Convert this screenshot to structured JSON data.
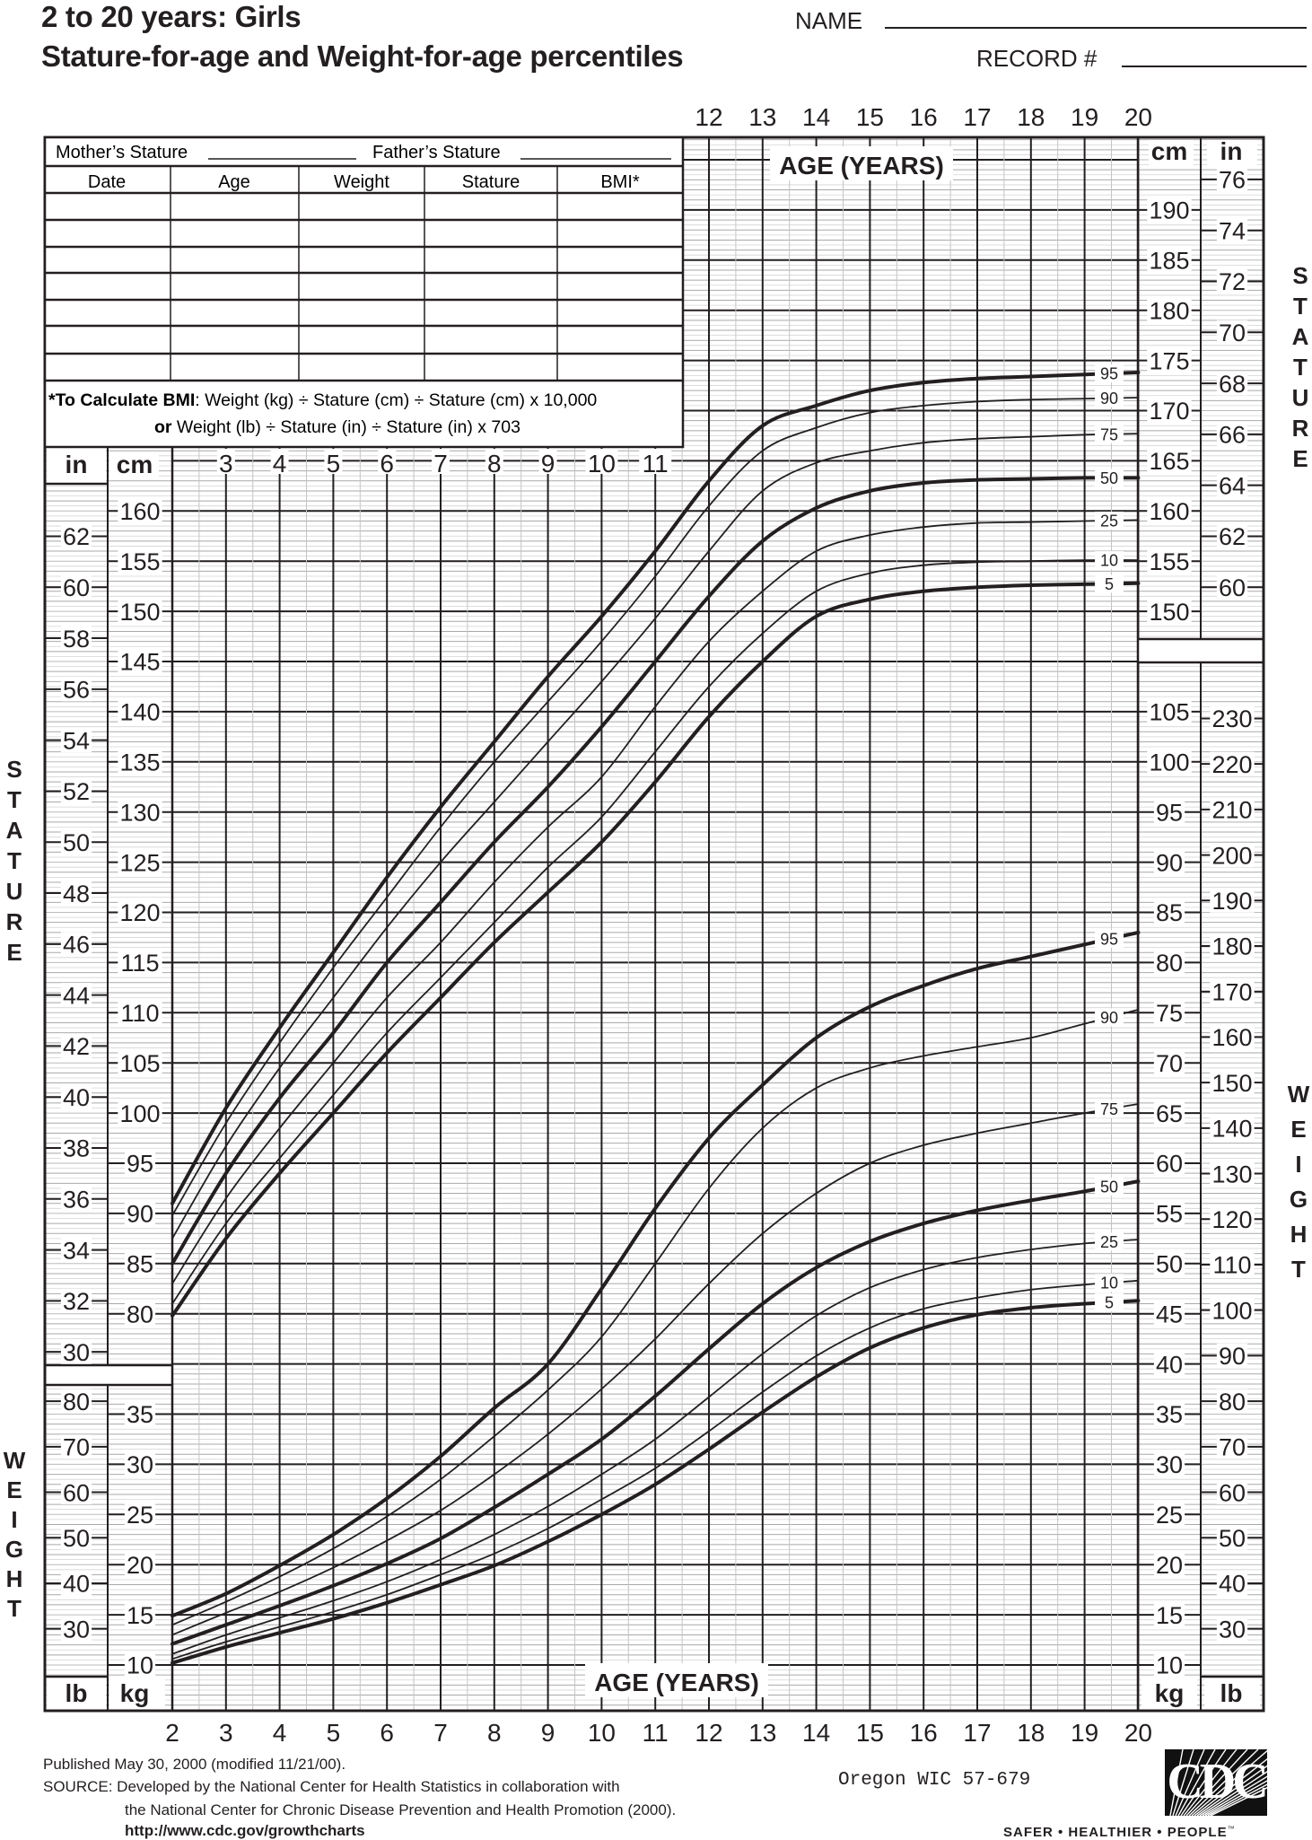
{
  "header": {
    "title": "2 to 20 years: Girls",
    "subtitle": "Stature-for-age and Weight-for-age percentiles",
    "name_label": "NAME",
    "record_label": "RECORD #"
  },
  "record_table": {
    "mothers_stature": "Mother’s Stature",
    "fathers_stature": "Father’s Stature",
    "columns": [
      "Date",
      "Age",
      "Weight",
      "Stature",
      "BMI*"
    ],
    "bmi_note_bold": "*To Calculate BMI",
    "bmi_note_1": ": Weight (kg) ÷ Stature (cm) ÷ Stature (cm) x 10,000",
    "bmi_note_or": "or",
    "bmi_note_2": " Weight (lb) ÷ Stature (in) ÷ Stature (in) x 703"
  },
  "units": {
    "in": "in",
    "cm": "cm",
    "lb": "lb",
    "kg": "kg"
  },
  "footer": {
    "published": "Published May 30, 2000 (modified 11/21/00).",
    "source_1": "SOURCE: Developed by the National Center for Health Statistics in collaboration with",
    "source_2": "the National Center for Chronic Disease Prevention and Health Promotion (2000).",
    "url": "http://www.cdc.gov/growthcharts",
    "form_id": "Oregon WIC 57-679"
  },
  "logo": {
    "text": "CDC",
    "tagline": "SAFER • HEALTHIER • PEOPLE",
    "tm": "™"
  },
  "chart_data": [
    {
      "type": "line",
      "xlabel": "AGE (YEARS)",
      "ylabel": "STATURE",
      "x_units": "years",
      "y_units": [
        "cm",
        "in"
      ],
      "xlim": [
        2,
        20
      ],
      "x_ticks": [
        2,
        3,
        4,
        5,
        6,
        7,
        8,
        9,
        10,
        11,
        12,
        13,
        14,
        15,
        16,
        17,
        18,
        19,
        20
      ],
      "y_ticks_cm": [
        80,
        85,
        90,
        95,
        100,
        105,
        110,
        115,
        120,
        125,
        130,
        135,
        140,
        145,
        150,
        155,
        160,
        165,
        170,
        175,
        180,
        185,
        190
      ],
      "y_ticks_in": [
        30,
        32,
        34,
        36,
        38,
        40,
        42,
        44,
        46,
        48,
        50,
        52,
        54,
        56,
        58,
        60,
        62,
        64,
        66,
        68,
        70,
        72,
        74,
        76
      ],
      "grid": true,
      "x": [
        2,
        3,
        4,
        5,
        6,
        7,
        8,
        9,
        10,
        11,
        12,
        13,
        14,
        15,
        16,
        17,
        18,
        19,
        20
      ],
      "series": [
        {
          "name": "5",
          "values": [
            79.8,
            87.5,
            94,
            100,
            106,
            111.5,
            117,
            122,
            127,
            133,
            139.5,
            145,
            149.5,
            151.2,
            152,
            152.4,
            152.6,
            152.7,
            152.8
          ]
        },
        {
          "name": "10",
          "values": [
            81,
            89,
            95.5,
            101.8,
            108,
            113.5,
            119,
            124.5,
            129.5,
            136,
            142.5,
            147.8,
            152,
            153.8,
            154.6,
            154.9,
            155,
            155.1,
            155.1
          ]
        },
        {
          "name": "25",
          "values": [
            83,
            91.5,
            98.5,
            105,
            111.5,
            117,
            123,
            128.5,
            133.5,
            140.5,
            147,
            152,
            156,
            157.6,
            158.4,
            158.8,
            158.9,
            159,
            159.1
          ]
        },
        {
          "name": "50",
          "values": [
            85,
            94,
            101.5,
            108,
            115,
            121,
            127,
            132.5,
            138.5,
            145,
            151.5,
            157,
            160.3,
            162,
            162.8,
            163.1,
            163.2,
            163.3,
            163.3
          ]
        },
        {
          "name": "75",
          "values": [
            87.5,
            96.7,
            104.5,
            111.5,
            118.5,
            125,
            131,
            137,
            143,
            149.3,
            156,
            162,
            164.8,
            166,
            166.8,
            167.2,
            167.4,
            167.6,
            167.7
          ]
        },
        {
          "name": "90",
          "values": [
            89.8,
            99,
            107,
            114.5,
            121.5,
            128.5,
            135,
            141,
            147,
            153.5,
            160.5,
            166,
            168.3,
            169.8,
            170.5,
            170.9,
            171.1,
            171.2,
            171.3
          ]
        },
        {
          "name": "95",
          "values": [
            91,
            100.5,
            108.5,
            116,
            123.5,
            130.5,
            137,
            143.5,
            149.5,
            156,
            163,
            168.5,
            170.5,
            172,
            172.8,
            173.2,
            173.4,
            173.6,
            173.8
          ]
        }
      ]
    },
    {
      "type": "line",
      "xlabel": "AGE (YEARS)",
      "ylabel": "WEIGHT",
      "x_units": "years",
      "y_units": [
        "kg",
        "lb"
      ],
      "xlim": [
        2,
        20
      ],
      "y_ticks_kg": [
        10,
        15,
        20,
        25,
        30,
        35,
        40,
        45,
        50,
        55,
        60,
        65,
        70,
        75,
        80,
        85,
        90,
        95,
        100,
        105
      ],
      "y_ticks_lb": [
        30,
        40,
        50,
        60,
        70,
        80,
        90,
        100,
        110,
        120,
        130,
        140,
        150,
        160,
        170,
        180,
        190,
        200,
        210,
        220,
        230
      ],
      "grid": true,
      "x": [
        2,
        3,
        4,
        5,
        6,
        7,
        8,
        9,
        10,
        11,
        12,
        13,
        14,
        15,
        16,
        17,
        18,
        19,
        20
      ],
      "series": [
        {
          "name": "5",
          "values": [
            10.2,
            11.8,
            13.2,
            14.6,
            16.2,
            18,
            19.9,
            22.3,
            25,
            28,
            31.5,
            35.2,
            38.7,
            41.6,
            43.6,
            44.9,
            45.6,
            46,
            46.3
          ]
        },
        {
          "name": "10",
          "values": [
            10.6,
            12.3,
            13.8,
            15.3,
            17,
            19,
            21.1,
            23.6,
            26.5,
            29.6,
            33.3,
            37.2,
            40.8,
            43.6,
            45.5,
            46.6,
            47.4,
            47.9,
            48.3
          ]
        },
        {
          "name": "25",
          "values": [
            11.1,
            13,
            14.7,
            16.4,
            18.3,
            20.5,
            23,
            25.8,
            29,
            32.5,
            36.7,
            41,
            44.8,
            47.6,
            49.4,
            50.6,
            51.4,
            52,
            52.4
          ]
        },
        {
          "name": "50",
          "values": [
            12.1,
            14,
            15.9,
            17.9,
            20.1,
            22.6,
            25.7,
            29,
            32.5,
            36.8,
            41.5,
            46,
            49.6,
            52.2,
            54,
            55.3,
            56.3,
            57.2,
            58.2
          ]
        },
        {
          "name": "75",
          "values": [
            13,
            15.2,
            17.3,
            19.7,
            22.4,
            25.4,
            29,
            33,
            37.5,
            42.5,
            48,
            53,
            57,
            60,
            61.8,
            63,
            64,
            65,
            65.9
          ]
        },
        {
          "name": "90",
          "values": [
            14,
            16.3,
            18.8,
            21.6,
            24.8,
            28.5,
            32.8,
            37.4,
            42.7,
            50,
            57.5,
            63.5,
            67.5,
            69.5,
            70.7,
            71.6,
            72.5,
            73.9,
            75.3
          ]
        },
        {
          "name": "95",
          "values": [
            14.9,
            17.1,
            19.9,
            23,
            26.6,
            30.8,
            35.6,
            40,
            47.5,
            55.5,
            62.5,
            67.8,
            72.5,
            75.6,
            77.7,
            79.4,
            80.6,
            81.8,
            83
          ]
        }
      ]
    }
  ]
}
